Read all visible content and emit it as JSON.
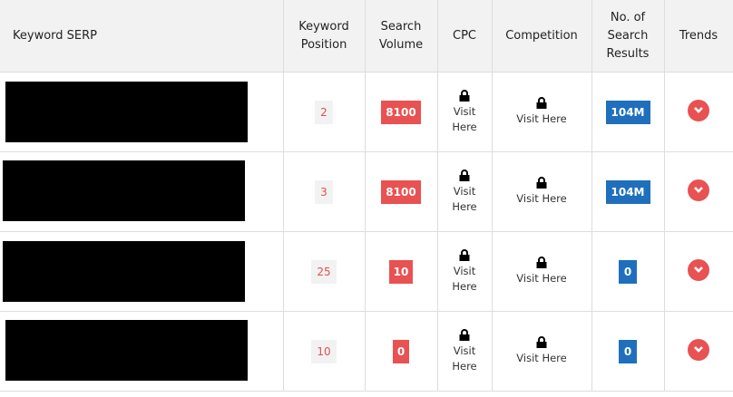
{
  "headers": {
    "keyword": "Keyword SERP",
    "position": "Keyword Position",
    "volume": "Search Volume",
    "cpc": "CPC",
    "competition": "Competition",
    "results": "No. of Search Results",
    "trends": "Trends"
  },
  "locked_text": "Visit Here",
  "colors": {
    "red": "#e85252",
    "blue": "#1f6fbd"
  },
  "rows": [
    {
      "keyword": "[redacted]",
      "position": "2",
      "volume": "8100",
      "results": "104M"
    },
    {
      "keyword": "[redacted]",
      "position": "3",
      "volume": "8100",
      "results": "104M"
    },
    {
      "keyword": "[redacted]",
      "position": "25",
      "volume": "10",
      "results": "0"
    },
    {
      "keyword": "[redacted]",
      "position": "10",
      "volume": "0",
      "results": "0"
    }
  ]
}
